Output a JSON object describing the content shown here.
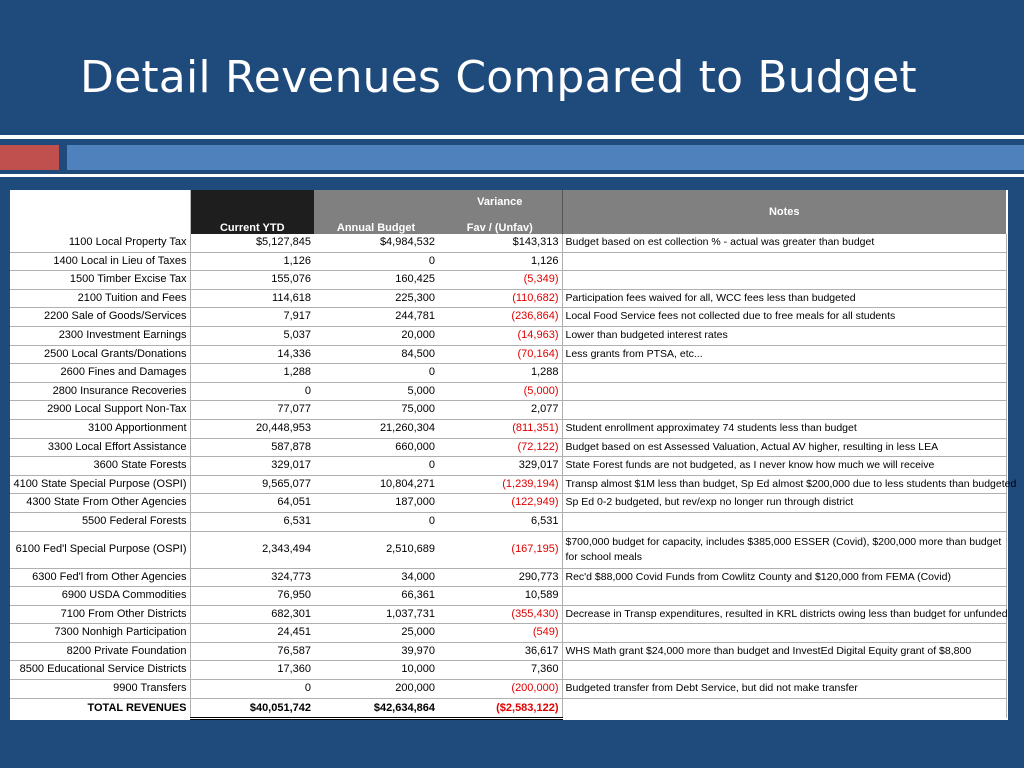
{
  "slide": {
    "title": "Detail Revenues Compared to Budget"
  },
  "table": {
    "headers": {
      "current_ytd": "Current YTD",
      "annual_budget": "Annual Budget",
      "variance_line1": "Variance",
      "variance_line2": "Fav / (Unfav)",
      "notes": "Notes"
    },
    "rows": [
      {
        "category": "1100 Local Property Tax",
        "ytd": "$5,127,845",
        "budget": "$4,984,532",
        "variance": "$143,313",
        "notes": "Budget based on est collection % - actual was greater than budget"
      },
      {
        "category": "1400 Local in Lieu of Taxes",
        "ytd": "1,126",
        "budget": "0",
        "variance": "1,126",
        "notes": ""
      },
      {
        "category": "1500 Timber Excise Tax",
        "ytd": "155,076",
        "budget": "160,425",
        "variance": "(5,349)",
        "notes": ""
      },
      {
        "category": "2100 Tuition and Fees",
        "ytd": "114,618",
        "budget": "225,300",
        "variance": "(110,682)",
        "notes": "Participation fees waived for all, WCC fees less than budgeted"
      },
      {
        "category": "2200 Sale of Goods/Services",
        "ytd": "7,917",
        "budget": "244,781",
        "variance": "(236,864)",
        "notes": "Local Food Service fees not collected due to free meals for all students"
      },
      {
        "category": "2300 Investment Earnings",
        "ytd": "5,037",
        "budget": "20,000",
        "variance": "(14,963)",
        "notes": "Lower than budgeted interest rates"
      },
      {
        "category": "2500 Local Grants/Donations",
        "ytd": "14,336",
        "budget": "84,500",
        "variance": "(70,164)",
        "notes": "Less grants from PTSA, etc..."
      },
      {
        "category": "2600 Fines and Damages",
        "ytd": "1,288",
        "budget": "0",
        "variance": "1,288",
        "notes": ""
      },
      {
        "category": "2800 Insurance Recoveries",
        "ytd": "0",
        "budget": "5,000",
        "variance": "(5,000)",
        "notes": ""
      },
      {
        "category": "2900 Local Support Non-Tax",
        "ytd": "77,077",
        "budget": "75,000",
        "variance": "2,077",
        "notes": ""
      },
      {
        "category": "3100 Apportionment",
        "ytd": "20,448,953",
        "budget": "21,260,304",
        "variance": "(811,351)",
        "notes": "Student enrollment approximatey 74 students less than budget"
      },
      {
        "category": "3300 Local Effort Assistance",
        "ytd": "587,878",
        "budget": "660,000",
        "variance": "(72,122)",
        "notes": "Budget based on est Assessed Valuation, Actual AV higher, resulting in less LEA"
      },
      {
        "category": "3600 State Forests",
        "ytd": "329,017",
        "budget": "0",
        "variance": "329,017",
        "notes": "State Forest funds are not budgeted, as I never know how much we will receive"
      },
      {
        "category": "4100 State Special Purpose (OSPI)",
        "ytd": "9,565,077",
        "budget": "10,804,271",
        "variance": "(1,239,194)",
        "notes": "Transp almost $1M less than budget, Sp Ed almost $200,000 due to less students than budgeted"
      },
      {
        "category": "4300 State From Other Agencies",
        "ytd": "64,051",
        "budget": "187,000",
        "variance": "(122,949)",
        "notes": "Sp Ed 0-2 budgeted, but rev/exp no longer run through district"
      },
      {
        "category": "5500 Federal Forests",
        "ytd": "6,531",
        "budget": "0",
        "variance": "6,531",
        "notes": ""
      },
      {
        "category": "6100 Fed'l Special Purpose (OSPI)",
        "ytd": "2,343,494",
        "budget": "2,510,689",
        "variance": "(167,195)",
        "notes": "$700,000 budget for capacity, includes $385,000 ESSER (Covid), $200,000 more than budget for school meals"
      },
      {
        "category": "6300 Fed'l from Other Agencies",
        "ytd": "324,773",
        "budget": "34,000",
        "variance": "290,773",
        "notes": "Rec'd $88,000 Covid Funds from Cowlitz County and $120,000 from FEMA (Covid)"
      },
      {
        "category": "6900 USDA Commodities",
        "ytd": "76,950",
        "budget": "66,361",
        "variance": "10,589",
        "notes": ""
      },
      {
        "category": "7100 From Other Districts",
        "ytd": "682,301",
        "budget": "1,037,731",
        "variance": "(355,430)",
        "notes": "Decrease in Transp expenditures, resulted in KRL districts owing less than budget for unfunded"
      },
      {
        "category": "7300 Nonhigh Participation",
        "ytd": "24,451",
        "budget": "25,000",
        "variance": "(549)",
        "notes": ""
      },
      {
        "category": "8200 Private Foundation",
        "ytd": "76,587",
        "budget": "39,970",
        "variance": "36,617",
        "notes": "WHS Math grant $24,000 more than budget and InvestEd Digital Equity grant of $8,800"
      },
      {
        "category": "8500 Educational Service Districts",
        "ytd": "17,360",
        "budget": "10,000",
        "variance": "7,360",
        "notes": ""
      },
      {
        "category": "9900 Transfers",
        "ytd": "0",
        "budget": "200,000",
        "variance": "(200,000)",
        "notes": "Budgeted transfer from Debt Service, but did not make transfer"
      }
    ],
    "total": {
      "category": "TOTAL REVENUES",
      "ytd": "$40,051,742",
      "budget": "$42,634,864",
      "variance": "($2,583,122)",
      "notes": ""
    }
  },
  "colors": {
    "background": "#1f4a7c",
    "accent_red": "#c0504d",
    "accent_blue": "#4f81bd",
    "negative": "#e00000"
  }
}
